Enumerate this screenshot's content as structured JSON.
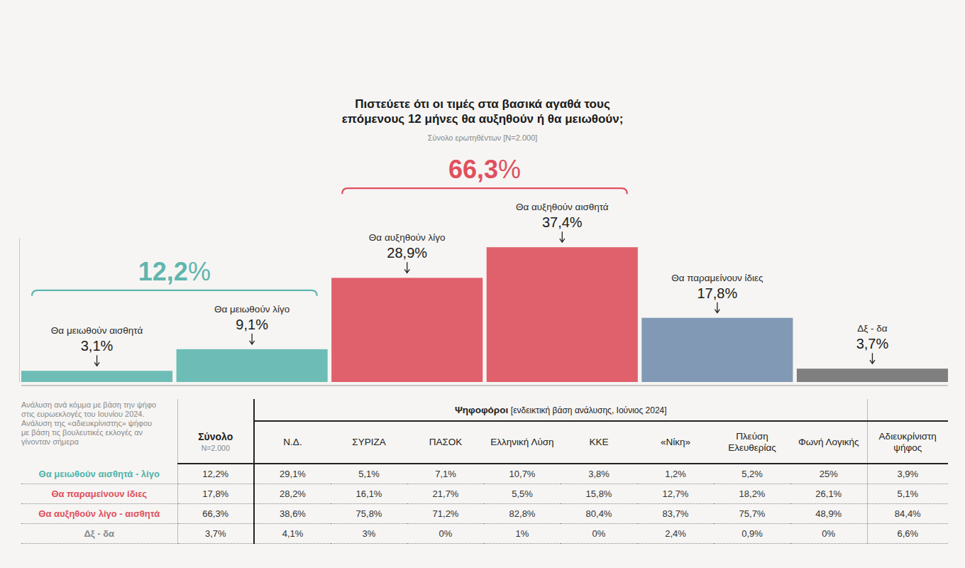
{
  "chart_data": {
    "type": "bar",
    "title": "Πιστεύετε ότι οι τιμές στα βασικά αγαθά τους επόμενους 12 μήνες θα αυξηθούν ή θα μειωθούν;",
    "subtitle": "Σύνολο ερωτηθέντων [N=2.000]",
    "categories": [
      "Θα μειωθούν αισθητά",
      "Θα μειωθούν λίγο",
      "Θα αυξηθούν λίγο",
      "Θα αυξηθούν αισθητά",
      "Θα παραμείνουν ίδιες",
      "Δξ - δα"
    ],
    "values": [
      3.1,
      9.1,
      28.9,
      37.4,
      17.8,
      3.7
    ],
    "value_labels": [
      "3,1%",
      "9,1%",
      "28,9%",
      "37,4%",
      "17,8%",
      "3,7%"
    ],
    "colors": [
      "#6dbdb6",
      "#6dbdb6",
      "#e0606c",
      "#e0606c",
      "#8199b4",
      "#7f7f7f"
    ],
    "groups": [
      {
        "from": 0,
        "to": 1,
        "value": 12.2,
        "label": "12,2%",
        "color": "#5fb6ae"
      },
      {
        "from": 2,
        "to": 3,
        "value": 66.3,
        "label": "66,3%",
        "color": "#e0505e"
      }
    ],
    "ylim": [
      0,
      40
    ],
    "data_labels": true,
    "tick_labels": false,
    "grid": false
  },
  "table": {
    "note": "Ανάλυση ανά κόμμα με βάση την ψήφο στις ευρωεκλογές του Ιουνίου 2024. Ανάλυση της «αδιευκρίνιστης» ψήφου με βάση τις βουλευτικές εκλογές αν γίνονταν σήμερα",
    "group_header": "Ψηφοφόροι",
    "group_header_note": "[ενδεικτική βάση ανάλυσης, Ιούνιος 2024]",
    "columns": [
      {
        "label": "Σύνολο",
        "note": "N=2.000"
      },
      {
        "label": "Ν.Δ."
      },
      {
        "label": "ΣΥΡΙΖΑ"
      },
      {
        "label": "ΠΑΣΟΚ"
      },
      {
        "label": "Ελληνική Λύση"
      },
      {
        "label": "ΚΚΕ"
      },
      {
        "label": "«Νίκη»"
      },
      {
        "label": "Πλεύση Ελευθερίας"
      },
      {
        "label": "Φωνή Λογικής"
      },
      {
        "label": "Αδιευκρίνιστη ψήφος"
      }
    ],
    "rows": [
      {
        "label": "Θα μειωθούν αισθητά - λίγο",
        "color": "#4fb3aa",
        "cells": [
          "12,2%",
          "29,1%",
          "5,1%",
          "7,1%",
          "10,7%",
          "3,8%",
          "1,2%",
          "5,2%",
          "25%",
          "3,9%"
        ]
      },
      {
        "label": "Θα παραμείνουν ίδιες",
        "color": "#e0505e",
        "cells": [
          "17,8%",
          "28,2%",
          "16,1%",
          "21,7%",
          "5,5%",
          "15,8%",
          "12,7%",
          "18,2%",
          "26,1%",
          "5,1%"
        ]
      },
      {
        "label": "Θα αυξηθούν λίγο - αισθητά",
        "color": "#e0505e",
        "cells": [
          "66,3%",
          "38,6%",
          "75,8%",
          "71,2%",
          "82,8%",
          "80,4%",
          "83,7%",
          "75,7%",
          "48,9%",
          "84,4%"
        ]
      },
      {
        "label": "Δξ - δα",
        "color": "#8a8a8a",
        "cells": [
          "3,7%",
          "4,1%",
          "3%",
          "0%",
          "1%",
          "0%",
          "2,4%",
          "0,9%",
          "0%",
          "6,6%"
        ]
      }
    ]
  }
}
